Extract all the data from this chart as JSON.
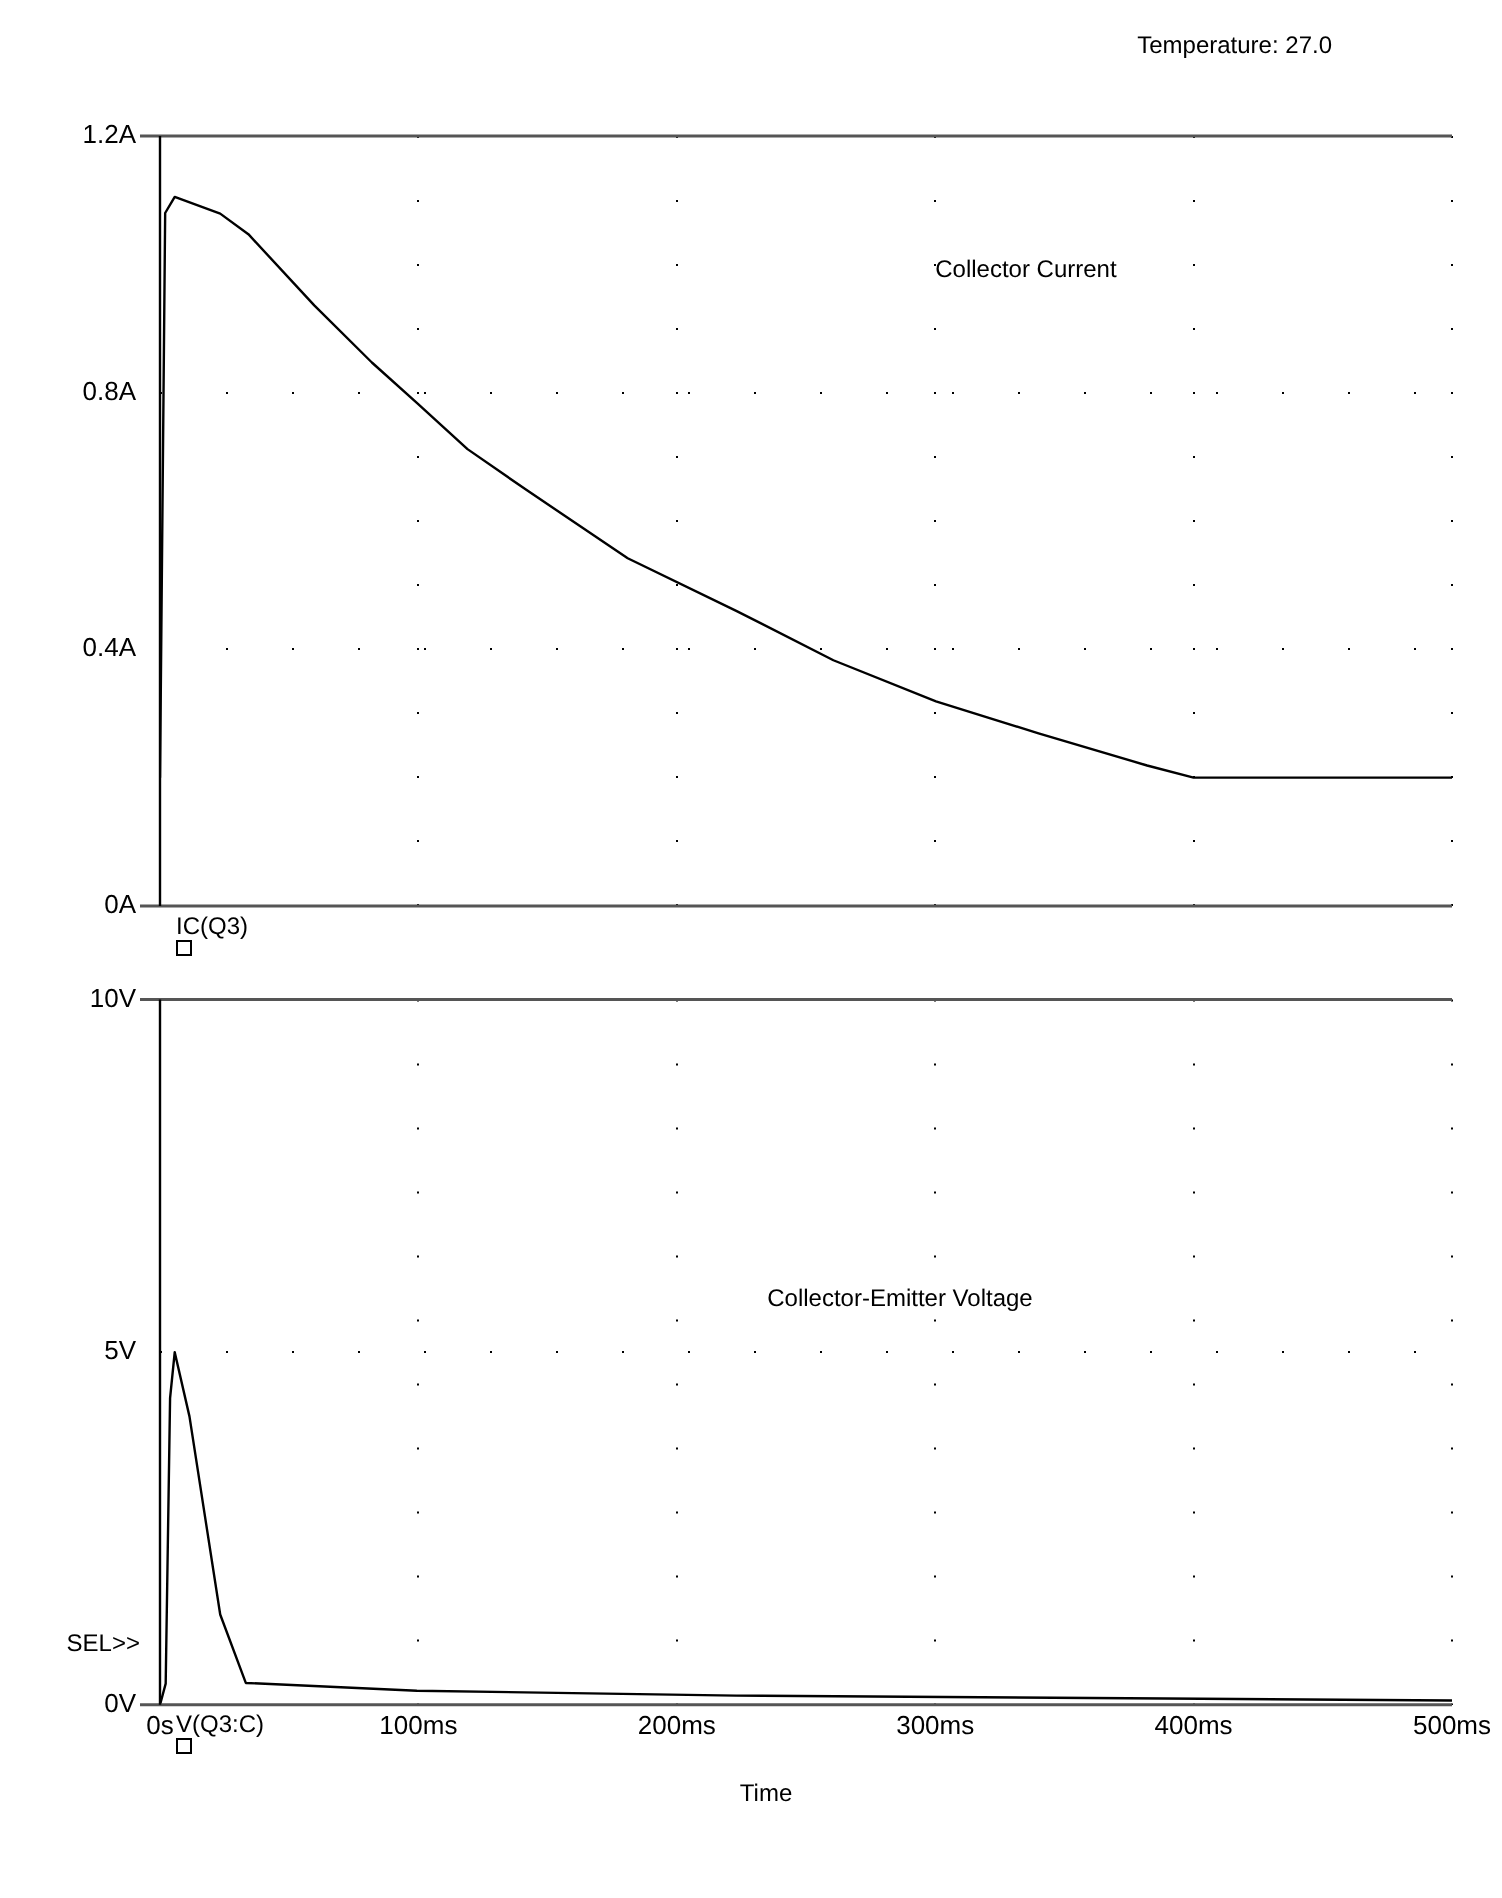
{
  "chart_data": [
    {
      "type": "line",
      "annotations": [
        "Temperature: 27.0",
        "Collector Current"
      ],
      "legend": "bottom left",
      "grid": true,
      "tick_labels": "y",
      "xlim": [
        0,
        500
      ],
      "xticks": [
        0,
        100,
        200,
        300,
        400,
        500
      ],
      "ylim": [
        0,
        1.2
      ],
      "yticks": [
        {
          "value": 0,
          "label": "0A"
        },
        {
          "value": 0.4,
          "label": "0.4A"
        },
        {
          "value": 0.8,
          "label": "0.8A"
        },
        {
          "value": 1.2,
          "label": "1.2A"
        }
      ],
      "series": [
        {
          "name": "IC(Q3)",
          "color": "#000000",
          "x": [
            0,
            2,
            5.7,
            23.3,
            34.2,
            59.7,
            82,
            99.4,
            119,
            141.6,
            181,
            223,
            260.6,
            300.3,
            340,
            382,
            400,
            500
          ],
          "values": [
            0.2,
            1.08,
            1.105,
            1.079,
            1.047,
            0.936,
            0.847,
            0.784,
            0.712,
            0.649,
            0.542,
            0.46,
            0.383,
            0.319,
            0.269,
            0.219,
            0.2,
            0.2
          ]
        }
      ]
    },
    {
      "type": "line",
      "annotations": [
        "Collector-Emitter Voltage",
        "SEL>>"
      ],
      "legend": "bottom left",
      "grid": true,
      "xlabel": "Time",
      "xlim": [
        0,
        500
      ],
      "xticks": [
        {
          "value": 0,
          "label": "0s"
        },
        {
          "value": 100,
          "label": "100ms"
        },
        {
          "value": 200,
          "label": "200ms"
        },
        {
          "value": 300,
          "label": "300ms"
        },
        {
          "value": 400,
          "label": "400ms"
        },
        {
          "value": 500,
          "label": "500ms"
        }
      ],
      "ylim": [
        0,
        10
      ],
      "yticks": [
        {
          "value": 0,
          "label": "0V"
        },
        {
          "value": 5,
          "label": "5V"
        },
        {
          "value": 10,
          "label": "10V"
        }
      ],
      "series": [
        {
          "name": "V(Q3:C)",
          "color": "#000000",
          "x": [
            0,
            2.2,
            3.9,
            5.7,
            11.4,
            23.3,
            33.2,
            99.4,
            223,
            389,
            500
          ],
          "values": [
            0,
            0.3,
            4.35,
            5.0,
            4.09,
            1.28,
            0.31,
            0.2,
            0.13,
            0.09,
            0.06
          ]
        }
      ]
    }
  ]
}
